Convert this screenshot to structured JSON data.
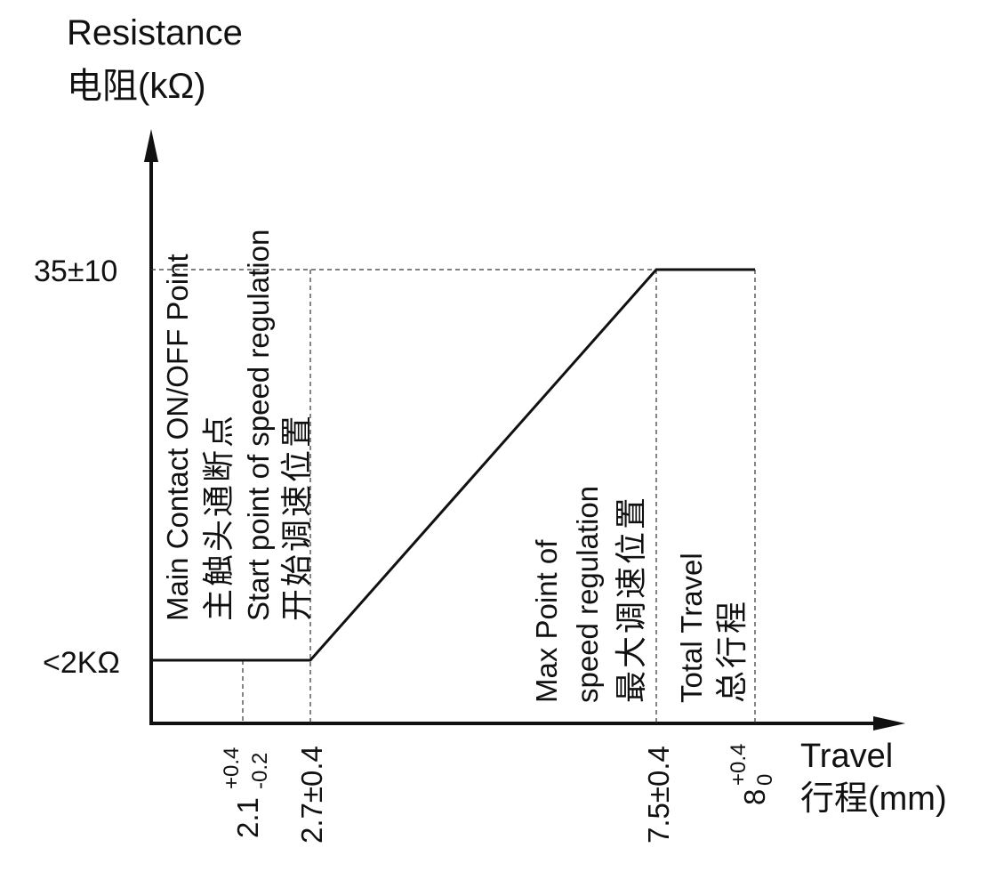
{
  "chart_data": {
    "type": "line",
    "ylabel_en": "Resistance",
    "ylabel_cn": "电阻(kΩ)",
    "xlabel_en": "Travel",
    "xlabel_cn": "行程(mm)",
    "y_ticks": [
      "<2KΩ",
      "35±10"
    ],
    "x_ticks": [
      {
        "base": "2.1",
        "sup": "+0.4",
        "sub": "-0.2"
      },
      {
        "base": "2.7±0.4",
        "sup": "",
        "sub": ""
      },
      {
        "base": "7.5±0.4",
        "sup": "",
        "sub": ""
      },
      {
        "base": "8",
        "sup": "+0.4",
        "sub": "0"
      }
    ],
    "series": [
      {
        "x": [
          0,
          2.7,
          7.5,
          8
        ],
        "y": [
          "<2KΩ",
          "<2KΩ",
          "35±10",
          "35±10"
        ]
      }
    ],
    "annotations": [
      {
        "x": 2.1,
        "lines": [
          "Main Contact ON/OFF Point",
          "主触头通断点"
        ]
      },
      {
        "x": 2.7,
        "lines": [
          "Start point of speed regulation",
          "开始调速位置"
        ]
      },
      {
        "x": 7.5,
        "lines": [
          "Max Point of",
          "speed regulation",
          "最大调速位置"
        ]
      },
      {
        "x": 8,
        "lines": [
          "Total Travel",
          "总行程"
        ]
      }
    ],
    "grid": false
  }
}
